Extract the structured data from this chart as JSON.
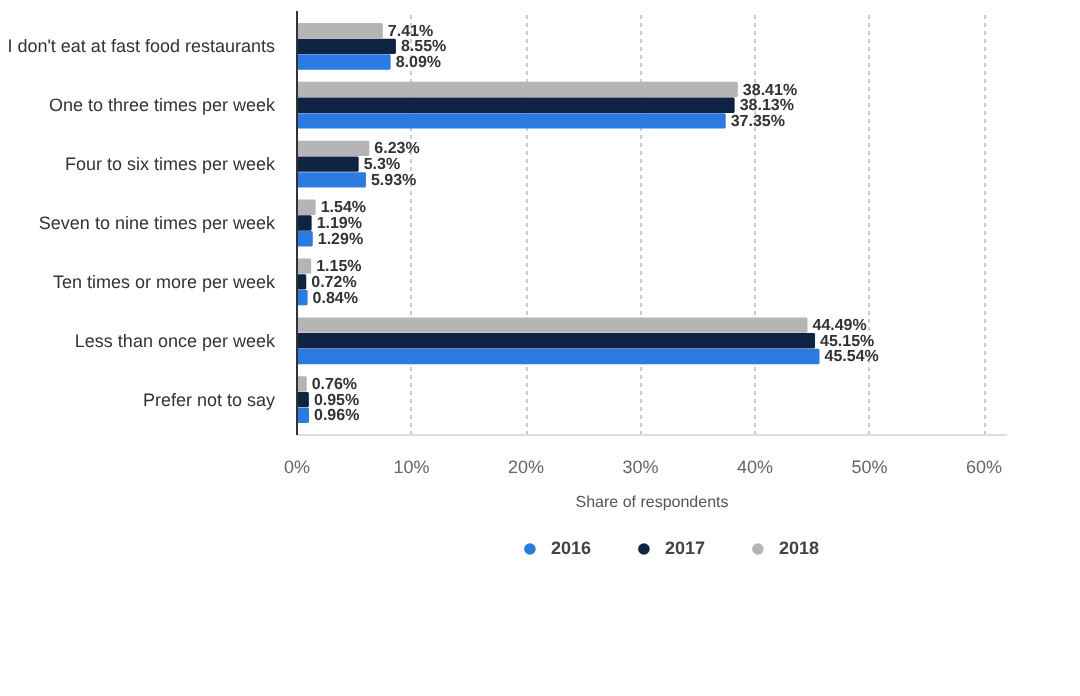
{
  "chart_data": {
    "type": "bar",
    "orientation": "horizontal",
    "xlabel": "Share of respondents",
    "categories": [
      "I don't eat at fast food restaurants",
      "One to three times per week",
      "Four to six times per week",
      "Seven to nine times per week",
      "Ten times or more per week",
      "Less than once per week",
      "Prefer not to say"
    ],
    "series": [
      {
        "name": "2018",
        "color": "#b5b5b5",
        "values": [
          7.41,
          38.41,
          6.23,
          1.54,
          1.15,
          44.49,
          0.76
        ],
        "value_labels": [
          "7.41%",
          "38.41%",
          "6.23%",
          "1.54%",
          "1.15%",
          "44.49%",
          "0.76%"
        ]
      },
      {
        "name": "2017",
        "color": "#0f2443",
        "values": [
          8.55,
          38.13,
          5.3,
          1.19,
          0.72,
          45.15,
          0.95
        ],
        "value_labels": [
          "8.55%",
          "38.13%",
          "5.3%",
          "1.19%",
          "0.72%",
          "45.15%",
          "0.95%"
        ]
      },
      {
        "name": "2016",
        "color": "#2c7be0",
        "values": [
          8.09,
          37.35,
          5.93,
          1.29,
          0.84,
          45.54,
          0.96
        ],
        "value_labels": [
          "8.09%",
          "37.35%",
          "5.93%",
          "1.29%",
          "0.84%",
          "45.54%",
          "0.96%"
        ]
      }
    ],
    "xlim": [
      0,
      62
    ],
    "xticks": [
      {
        "value": 0,
        "label": "0%"
      },
      {
        "value": 10,
        "label": "10%"
      },
      {
        "value": 20,
        "label": "20%"
      },
      {
        "value": 30,
        "label": "30%"
      },
      {
        "value": 40,
        "label": "40%"
      },
      {
        "value": 50,
        "label": "50%"
      },
      {
        "value": 60,
        "label": "60%"
      }
    ],
    "grid": "x",
    "legend": "bottom"
  }
}
